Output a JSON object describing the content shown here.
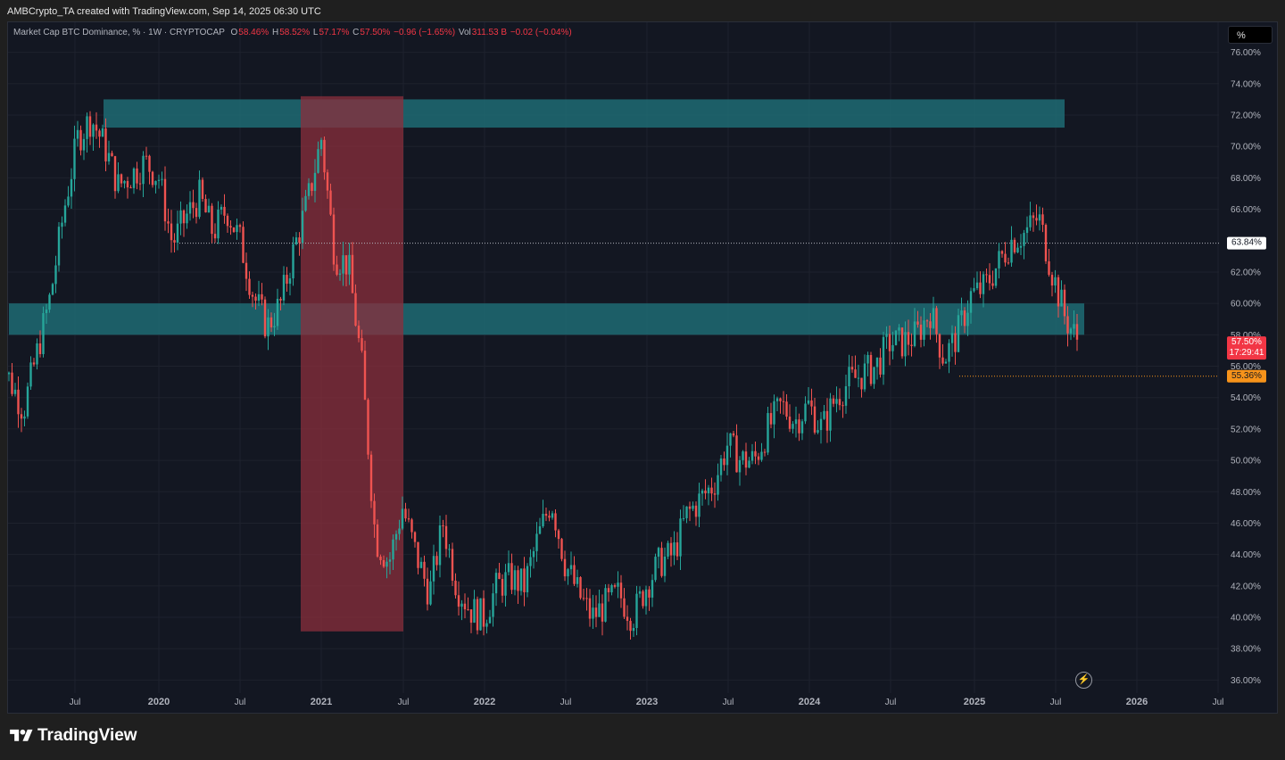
{
  "header": {
    "credit": "AMBCrypto_TA created with TradingView.com, Sep 14, 2025 06:30 UTC"
  },
  "legend": {
    "symbol": "Market Cap BTC Dominance, % · 1W · CRYPTOCAP",
    "o_label": "O",
    "o_value": "58.46%",
    "h_label": "H",
    "h_value": "58.52%",
    "l_label": "L",
    "l_value": "57.17%",
    "c_label": "C",
    "c_value": "57.50%",
    "change": "−0.96 (−1.65%)",
    "vol_label": "Vol",
    "vol_value": "311.53 B",
    "vol_change": "−0.02 (−0.04%)"
  },
  "scale_button": {
    "label": "%"
  },
  "footer": {
    "brand": "TradingView"
  },
  "colors": {
    "up": "#26a69a",
    "down": "#ef5350",
    "zone": "#1e6b73",
    "red_zone": "#8b2f3c",
    "last_price_bg": "#f23645",
    "low_marker_bg": "#f7931a"
  },
  "chart_data": {
    "type": "candlestick",
    "title": "Market Cap BTC Dominance, % · 1W · CRYPTOCAP",
    "y_ticks": [
      "76.00%",
      "74.00%",
      "72.00%",
      "70.00%",
      "68.00%",
      "66.00%",
      "62.00%",
      "60.00%",
      "58.00%",
      "56.00%",
      "54.00%",
      "52.00%",
      "50.00%",
      "48.00%",
      "46.00%",
      "44.00%",
      "42.00%",
      "40.00%",
      "38.00%",
      "36.00%"
    ],
    "x_ticks": [
      "Jul",
      "2020",
      "Jul",
      "2021",
      "Jul",
      "2022",
      "Jul",
      "2023",
      "Jul",
      "2024",
      "Jul",
      "2025",
      "Jul",
      "2026",
      "Jul"
    ],
    "ylim": [
      35,
      77
    ],
    "price_markers": [
      {
        "label": "63.84%",
        "value": 63.84
      },
      {
        "label": "57.50%",
        "value": 57.5
      },
      {
        "label": "17:29:41"
      },
      {
        "label": "55.36%",
        "value": 55.36
      }
    ],
    "zones": [
      {
        "name": "upper-resistance",
        "from": "2019-07",
        "to": "2025-06",
        "y_low": 71.2,
        "y_high": 73.0
      },
      {
        "name": "support-resistance",
        "from": "2019-01",
        "to": "2025-09",
        "y_low": 58.0,
        "y_high": 60.0
      },
      {
        "name": "drop-period",
        "from": "2020-11",
        "to": "2021-07",
        "y_low": 39.1,
        "y_high": 73.2
      }
    ],
    "path": [
      [
        "2019-01",
        57.0
      ],
      [
        "2019-03",
        53.2
      ],
      [
        "2019-05",
        60.5
      ],
      [
        "2019-06",
        66.0
      ],
      [
        "2019-07",
        70.5
      ],
      [
        "2019-08",
        71.8
      ],
      [
        "2019-09",
        70.0
      ],
      [
        "2019-10",
        67.5
      ],
      [
        "2019-11",
        68.2
      ],
      [
        "2019-12",
        69.0
      ],
      [
        "2020-01",
        68.0
      ],
      [
        "2020-02",
        63.8
      ],
      [
        "2020-03",
        65.5
      ],
      [
        "2020-04",
        66.8
      ],
      [
        "2020-05",
        64.5
      ],
      [
        "2020-06",
        66.0
      ],
      [
        "2020-07",
        64.0
      ],
      [
        "2020-08",
        60.5
      ],
      [
        "2020-09",
        58.5
      ],
      [
        "2020-10",
        60.0
      ],
      [
        "2020-11",
        63.5
      ],
      [
        "2020-12",
        66.5
      ],
      [
        "2021-01",
        70.5
      ],
      [
        "2021-02",
        63.0
      ],
      [
        "2021-03",
        62.5
      ],
      [
        "2021-04",
        56.0
      ],
      [
        "2021-05",
        45.0
      ],
      [
        "2021-06",
        43.5
      ],
      [
        "2021-07",
        47.0
      ],
      [
        "2021-08",
        44.0
      ],
      [
        "2021-09",
        41.5
      ],
      [
        "2021-10",
        46.0
      ],
      [
        "2021-11",
        42.0
      ],
      [
        "2021-12",
        40.5
      ],
      [
        "2022-01",
        40.0
      ],
      [
        "2022-02",
        42.0
      ],
      [
        "2022-03",
        42.5
      ],
      [
        "2022-04",
        42.0
      ],
      [
        "2022-05",
        45.0
      ],
      [
        "2022-06",
        47.5
      ],
      [
        "2022-07",
        43.5
      ],
      [
        "2022-08",
        41.5
      ],
      [
        "2022-09",
        40.0
      ],
      [
        "2022-10",
        40.8
      ],
      [
        "2022-11",
        41.5
      ],
      [
        "2022-12",
        40.0
      ],
      [
        "2023-01",
        42.0
      ],
      [
        "2023-02",
        43.5
      ],
      [
        "2023-03",
        44.0
      ],
      [
        "2023-04",
        46.5
      ],
      [
        "2023-05",
        47.5
      ],
      [
        "2023-06",
        48.5
      ],
      [
        "2023-07",
        51.0
      ],
      [
        "2023-08",
        50.0
      ],
      [
        "2023-09",
        50.0
      ],
      [
        "2023-10",
        52.0
      ],
      [
        "2023-11",
        53.5
      ],
      [
        "2023-12",
        52.5
      ],
      [
        "2024-01",
        53.5
      ],
      [
        "2024-02",
        52.0
      ],
      [
        "2024-03",
        54.0
      ],
      [
        "2024-04",
        55.0
      ],
      [
        "2024-05",
        55.5
      ],
      [
        "2024-06",
        56.0
      ],
      [
        "2024-07",
        57.5
      ],
      [
        "2024-08",
        57.5
      ],
      [
        "2024-09",
        58.0
      ],
      [
        "2024-10",
        59.5
      ],
      [
        "2024-11",
        56.5
      ],
      [
        "2024-12",
        58.0
      ],
      [
        "2025-01",
        60.5
      ],
      [
        "2025-02",
        61.0
      ],
      [
        "2025-03",
        62.5
      ],
      [
        "2025-04",
        64.0
      ],
      [
        "2025-05",
        64.5
      ],
      [
        "2025-06",
        65.5
      ],
      [
        "2025-07",
        62.0
      ],
      [
        "2025-08",
        59.0
      ],
      [
        "2025-09",
        57.5
      ]
    ]
  }
}
